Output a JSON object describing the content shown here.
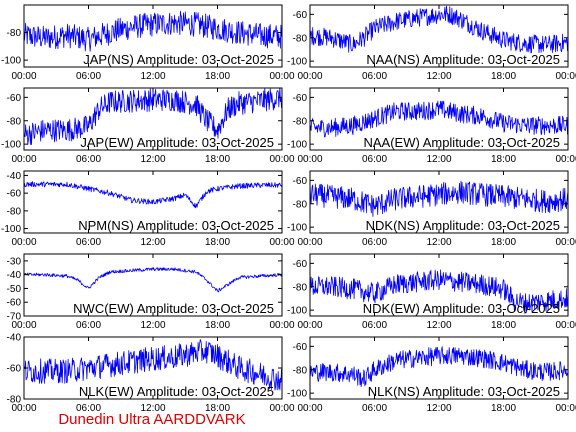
{
  "caption": "Dunedin Ultra AARDDVARK",
  "colors": {
    "trace": "#0000ff",
    "caption": "#e00000",
    "axes": "#000000"
  },
  "chart_data": [
    {
      "id": "jap-ns",
      "type": "line",
      "title": "JAP(NS) Amplitude: 03-Oct-2025",
      "x_ticks": [
        "00:00",
        "06:00",
        "12:00",
        "18:00",
        "00:00"
      ],
      "xlim": [
        0,
        24
      ],
      "y_ticks": [
        -100,
        -80
      ],
      "ylim": [
        -105,
        -60
      ],
      "series": [
        {
          "x": [
            0,
            2,
            4,
            6,
            8,
            10,
            12,
            14,
            16,
            18,
            20,
            22,
            24
          ],
          "values": [
            -82,
            -84,
            -82,
            -85,
            -80,
            -76,
            -74,
            -73,
            -74,
            -77,
            -80,
            -82,
            -83
          ],
          "spread": 9
        }
      ]
    },
    {
      "id": "naa-ns",
      "type": "line",
      "title": "NAA(NS) Amplitude: 03-Oct-2025",
      "x_ticks": [
        "00:00",
        "06:00",
        "12:00",
        "18:00",
        "00:00"
      ],
      "xlim": [
        0,
        24
      ],
      "y_ticks": [
        -100,
        -80,
        -60
      ],
      "ylim": [
        -105,
        -52
      ],
      "series": [
        {
          "x": [
            0,
            2,
            4,
            5,
            6,
            8,
            10,
            12,
            13,
            14,
            16,
            18,
            20,
            22,
            24
          ],
          "values": [
            -78,
            -80,
            -86,
            -80,
            -72,
            -66,
            -63,
            -60,
            -60,
            -64,
            -74,
            -82,
            -85,
            -86,
            -84
          ],
          "spread": 8
        }
      ]
    },
    {
      "id": "jap-ew",
      "type": "line",
      "title": "JAP(EW) Amplitude: 03-Oct-2025",
      "x_ticks": [
        "00:00",
        "06:00",
        "12:00",
        "18:00",
        "00:00"
      ],
      "xlim": [
        0,
        24
      ],
      "y_ticks": [
        -100,
        -80,
        -60
      ],
      "ylim": [
        -105,
        -52
      ],
      "series": [
        {
          "x": [
            0,
            2,
            4,
            6,
            7,
            8,
            10,
            12,
            14,
            16,
            17,
            18,
            19,
            20,
            22,
            24
          ],
          "values": [
            -92,
            -88,
            -88,
            -85,
            -70,
            -64,
            -63,
            -62,
            -62,
            -66,
            -80,
            -88,
            -70,
            -65,
            -63,
            -60
          ],
          "spread": 10
        }
      ]
    },
    {
      "id": "naa-ew",
      "type": "line",
      "title": "NAA(EW) Amplitude: 03-Oct-2025",
      "x_ticks": [
        "00:00",
        "06:00",
        "12:00",
        "18:00",
        "00:00"
      ],
      "xlim": [
        0,
        24
      ],
      "y_ticks": [
        -100,
        -80,
        -60
      ],
      "ylim": [
        -105,
        -52
      ],
      "series": [
        {
          "x": [
            0,
            2,
            4,
            6,
            8,
            10,
            12,
            14,
            16,
            18,
            20,
            22,
            24
          ],
          "values": [
            -86,
            -86,
            -84,
            -78,
            -72,
            -72,
            -70,
            -74,
            -76,
            -82,
            -84,
            -84,
            -84
          ],
          "spread": 8
        }
      ]
    },
    {
      "id": "npm-ns",
      "type": "line",
      "title": "NPM(NS) Amplitude: 03-Oct-2025",
      "x_ticks": [
        "00:00",
        "06:00",
        "12:00",
        "18:00",
        "00:00"
      ],
      "xlim": [
        0,
        24
      ],
      "y_ticks": [
        -100,
        -80,
        -60,
        -40
      ],
      "ylim": [
        -105,
        -35
      ],
      "series": [
        {
          "x": [
            0,
            2,
            4,
            6,
            8,
            10,
            12,
            14,
            15,
            16,
            17,
            18,
            20,
            22,
            24
          ],
          "values": [
            -50,
            -50,
            -50,
            -55,
            -60,
            -68,
            -70,
            -66,
            -62,
            -75,
            -58,
            -55,
            -52,
            -51,
            -51
          ],
          "spread": 3
        }
      ]
    },
    {
      "id": "ndk-ns",
      "type": "line",
      "title": "NDK(NS) Amplitude: 03-Oct-2025",
      "x_ticks": [
        "00:00",
        "06:00",
        "12:00",
        "18:00",
        "00:00"
      ],
      "xlim": [
        0,
        24
      ],
      "y_ticks": [
        -100,
        -80,
        -60
      ],
      "ylim": [
        -105,
        -52
      ],
      "series": [
        {
          "x": [
            0,
            2,
            4,
            6,
            8,
            10,
            12,
            14,
            16,
            18,
            20,
            22,
            24
          ],
          "values": [
            -72,
            -74,
            -76,
            -82,
            -76,
            -74,
            -72,
            -70,
            -72,
            -74,
            -76,
            -78,
            -76
          ],
          "spread": 10
        }
      ]
    },
    {
      "id": "nwc-ew",
      "type": "line",
      "title": "NWC(EW) Amplitude: 03-Oct-2025",
      "x_ticks": [
        "00:00",
        "06:00",
        "12:00",
        "18:00",
        "00:00"
      ],
      "xlim": [
        0,
        24
      ],
      "y_ticks": [
        -70,
        -60,
        -50,
        -40,
        -30
      ],
      "ylim": [
        -70,
        -25
      ],
      "series": [
        {
          "x": [
            0,
            2,
            4,
            5,
            6,
            7,
            8,
            10,
            12,
            14,
            16,
            17,
            18,
            19,
            20,
            22,
            24
          ],
          "values": [
            -40,
            -40,
            -41,
            -44,
            -50,
            -42,
            -38,
            -37,
            -36,
            -36,
            -38,
            -44,
            -52,
            -47,
            -42,
            -41,
            -40
          ],
          "spread": 1.2
        }
      ]
    },
    {
      "id": "ndk-ew",
      "type": "line",
      "title": "NDK(EW) Amplitude: 03-Oct-2025",
      "x_ticks": [
        "00:00",
        "06:00",
        "12:00",
        "18:00",
        "00:00"
      ],
      "xlim": [
        0,
        24
      ],
      "y_ticks": [
        -100,
        -80,
        -60
      ],
      "ylim": [
        -105,
        -52
      ],
      "series": [
        {
          "x": [
            0,
            2,
            4,
            6,
            8,
            10,
            12,
            14,
            16,
            18,
            19,
            20,
            22,
            24
          ],
          "values": [
            -80,
            -80,
            -82,
            -86,
            -78,
            -76,
            -74,
            -76,
            -78,
            -82,
            -92,
            -94,
            -92,
            -90
          ],
          "spread": 9
        }
      ]
    },
    {
      "id": "nlk-ew",
      "type": "line",
      "title": "NLK(EW) Amplitude: 03-Oct-2025",
      "x_ticks": [
        "00:00",
        "06:00",
        "12:00",
        "18:00",
        "00:00"
      ],
      "xlim": [
        0,
        24
      ],
      "y_ticks": [
        -80,
        -60,
        -40
      ],
      "ylim": [
        -80,
        -40
      ],
      "series": [
        {
          "x": [
            0,
            2,
            4,
            6,
            8,
            10,
            12,
            14,
            16,
            17,
            18,
            20,
            22,
            24
          ],
          "values": [
            -62,
            -62,
            -62,
            -60,
            -58,
            -56,
            -54,
            -53,
            -50,
            -49,
            -52,
            -60,
            -64,
            -68
          ],
          "spread": 8
        }
      ]
    },
    {
      "id": "nlk-ns",
      "type": "line",
      "title": "NLK(NS) Amplitude: 03-Oct-2025",
      "x_ticks": [
        "00:00",
        "06:00",
        "12:00",
        "18:00",
        "00:00"
      ],
      "xlim": [
        0,
        24
      ],
      "y_ticks": [
        -100,
        -80,
        -60
      ],
      "ylim": [
        -105,
        -52
      ],
      "series": [
        {
          "x": [
            0,
            2,
            4,
            5,
            6,
            8,
            10,
            12,
            14,
            16,
            18,
            20,
            22,
            24
          ],
          "values": [
            -82,
            -82,
            -84,
            -88,
            -80,
            -72,
            -70,
            -68,
            -68,
            -70,
            -74,
            -80,
            -82,
            -80
          ],
          "spread": 8
        }
      ]
    }
  ]
}
